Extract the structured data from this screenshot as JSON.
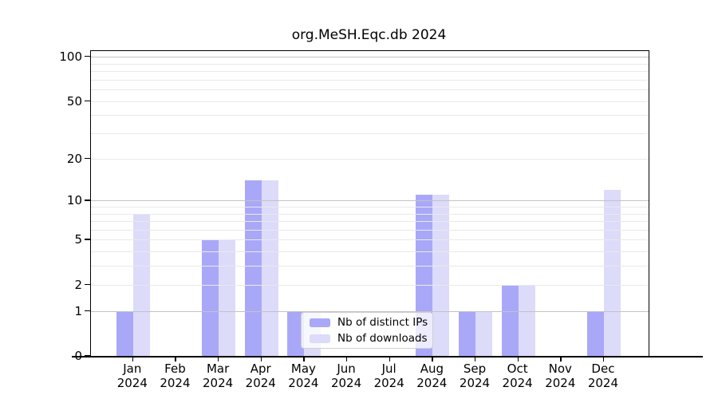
{
  "chart_data": {
    "type": "bar",
    "title": "org.MeSH.Eqc.db 2024",
    "categories": [
      "Jan",
      "Feb",
      "Mar",
      "Apr",
      "May",
      "Jun",
      "Jul",
      "Aug",
      "Sep",
      "Oct",
      "Nov",
      "Dec"
    ],
    "x_tick_year": "2024",
    "series": [
      {
        "name": "Nb of distinct IPs",
        "color": "#a9a8f8",
        "values": [
          1,
          0,
          5,
          14,
          1,
          0,
          0,
          11,
          1,
          2,
          0,
          1
        ]
      },
      {
        "name": "Nb of downloads",
        "color": "#dcdbfa",
        "values": [
          8,
          0,
          5,
          14,
          1,
          0,
          0,
          11,
          1,
          2,
          0,
          12
        ]
      }
    ],
    "y_ticks": [
      0,
      1,
      2,
      5,
      10,
      20,
      50,
      100
    ],
    "y_minor_gridlines": [
      3,
      4,
      6,
      7,
      8,
      9,
      30,
      40,
      60,
      70,
      80,
      90
    ],
    "y_major_gridlines": [
      1,
      10,
      100
    ],
    "y_scale": "log10(1+value)",
    "ylim": [
      0,
      110
    ],
    "grid": true,
    "legend_position": "bottom-center-inside"
  },
  "colors": {
    "major_grid": "#c3c3c3",
    "minor_grid": "#e9e9e9",
    "axis": "#000000"
  }
}
